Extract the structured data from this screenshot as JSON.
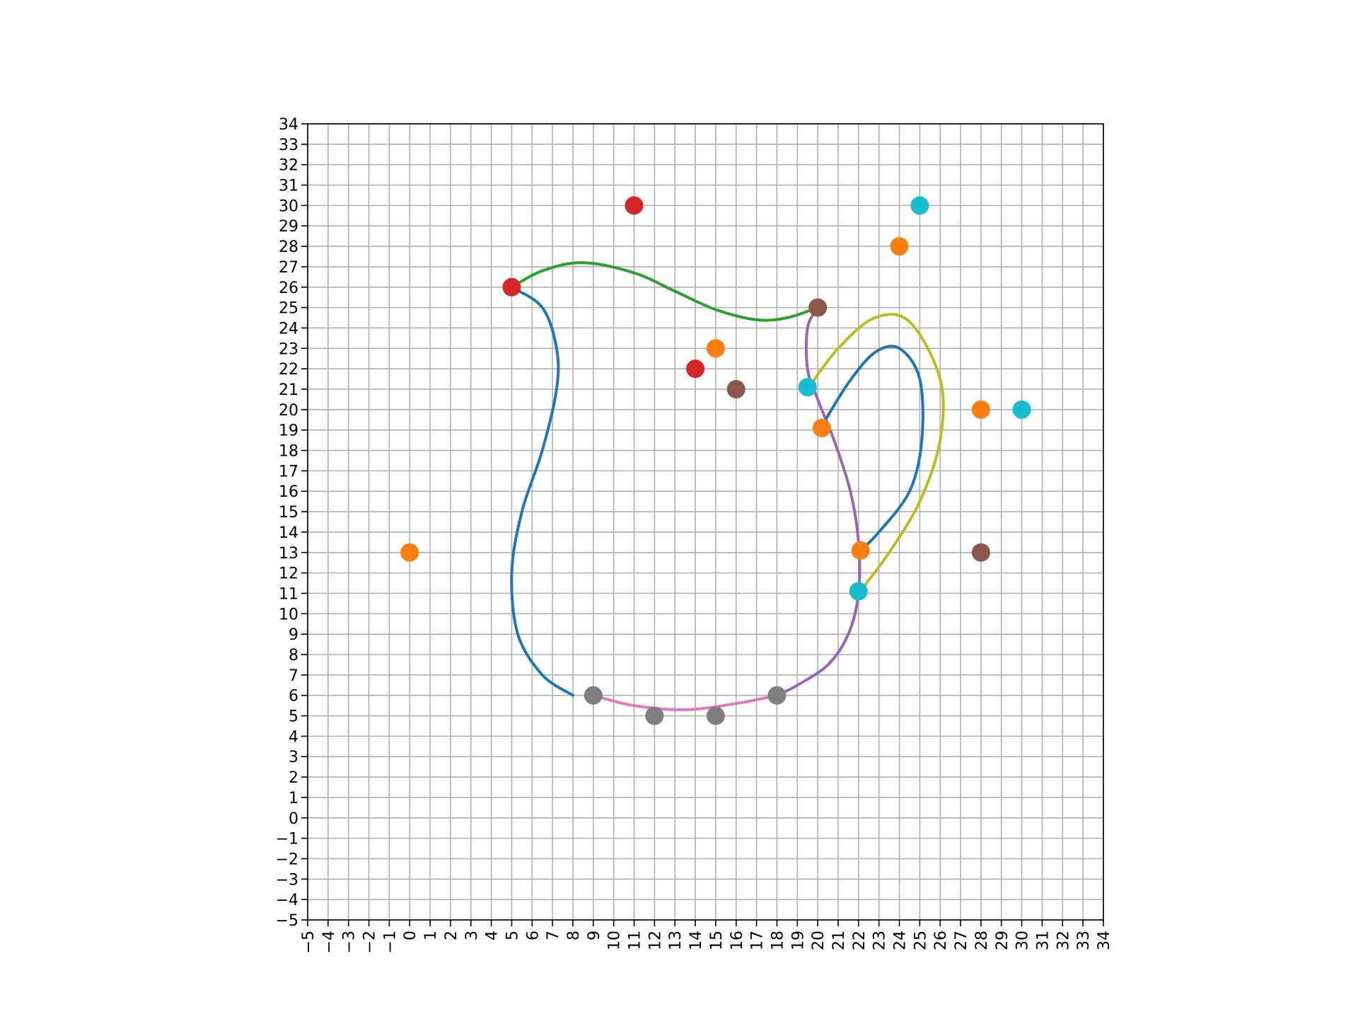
{
  "chart_data": {
    "type": "line",
    "title": "",
    "xlabel": "",
    "ylabel": "",
    "xlim": [
      -5,
      34
    ],
    "ylim": [
      -5,
      34
    ],
    "grid": true,
    "x_ticks": [
      "−5",
      "−4",
      "−3",
      "−2",
      "−1",
      "0",
      "1",
      "2",
      "3",
      "4",
      "5",
      "6",
      "7",
      "8",
      "9",
      "10",
      "11",
      "12",
      "13",
      "14",
      "15",
      "16",
      "17",
      "18",
      "19",
      "20",
      "21",
      "22",
      "23",
      "24",
      "25",
      "26",
      "27",
      "28",
      "29",
      "30",
      "31",
      "32",
      "33",
      "34"
    ],
    "y_ticks": [
      "−5",
      "−4",
      "−3",
      "−2",
      "−1",
      "0",
      "1",
      "2",
      "3",
      "4",
      "5",
      "6",
      "7",
      "8",
      "9",
      "10",
      "11",
      "12",
      "13",
      "14",
      "15",
      "16",
      "17",
      "18",
      "19",
      "20",
      "21",
      "22",
      "23",
      "24",
      "25",
      "26",
      "27",
      "28",
      "29",
      "30",
      "31",
      "32",
      "33",
      "34"
    ],
    "curves": [
      {
        "color": "#1f77b4",
        "points": [
          [
            5,
            26
          ],
          [
            6.5,
            25
          ],
          [
            7.2,
            23
          ],
          [
            7.2,
            21
          ],
          [
            6.5,
            18
          ],
          [
            5.5,
            15
          ],
          [
            5,
            12
          ],
          [
            5.3,
            9
          ],
          [
            6.5,
            7
          ],
          [
            8,
            6
          ]
        ]
      },
      {
        "color": "#2ca02c",
        "points": [
          [
            5,
            26
          ],
          [
            6.5,
            26.8
          ],
          [
            8.5,
            27.2
          ],
          [
            11,
            26.7
          ],
          [
            13,
            25.8
          ],
          [
            15,
            24.9
          ],
          [
            17,
            24.4
          ],
          [
            18.5,
            24.5
          ],
          [
            20,
            25
          ]
        ]
      },
      {
        "color": "#9467bd",
        "points": [
          [
            20,
            25
          ],
          [
            19.5,
            24
          ],
          [
            19.5,
            22
          ],
          [
            20,
            20.5
          ],
          [
            20.8,
            18.5
          ],
          [
            21.6,
            16
          ],
          [
            22,
            13.5
          ],
          [
            22,
            11
          ],
          [
            21.5,
            9
          ],
          [
            20.5,
            7.5
          ],
          [
            19,
            6.5
          ],
          [
            18,
            6
          ]
        ]
      },
      {
        "color": "#1f77b4",
        "points": [
          [
            20.2,
            19.2
          ],
          [
            21.5,
            21.3
          ],
          [
            22.8,
            22.8
          ],
          [
            24,
            23
          ],
          [
            25,
            21.5
          ],
          [
            25.1,
            18.5
          ],
          [
            24.5,
            16
          ],
          [
            23,
            14
          ],
          [
            22,
            13
          ]
        ]
      },
      {
        "color": "#bcbd22",
        "points": [
          [
            19.5,
            21
          ],
          [
            21,
            23
          ],
          [
            22.8,
            24.5
          ],
          [
            24.5,
            24.3
          ],
          [
            26,
            21.5
          ],
          [
            26,
            18.5
          ],
          [
            25,
            15.5
          ],
          [
            23.5,
            13
          ],
          [
            22,
            11
          ]
        ]
      },
      {
        "color": "#e377c2",
        "points": [
          [
            9,
            6
          ],
          [
            11,
            5.5
          ],
          [
            13.5,
            5.3
          ],
          [
            16,
            5.6
          ],
          [
            18,
            6
          ]
        ]
      }
    ],
    "points": [
      {
        "x": 5,
        "y": 26,
        "color": "#d62728"
      },
      {
        "x": 11,
        "y": 30,
        "color": "#d62728"
      },
      {
        "x": 14,
        "y": 22,
        "color": "#d62728"
      },
      {
        "x": 15,
        "y": 23,
        "color": "#ff7f0e"
      },
      {
        "x": 0,
        "y": 13,
        "color": "#ff7f0e"
      },
      {
        "x": 24,
        "y": 28,
        "color": "#ff7f0e"
      },
      {
        "x": 28,
        "y": 20,
        "color": "#ff7f0e"
      },
      {
        "x": 20.2,
        "y": 19.1,
        "color": "#ff7f0e"
      },
      {
        "x": 22.1,
        "y": 13.1,
        "color": "#ff7f0e"
      },
      {
        "x": 16,
        "y": 21,
        "color": "#8c564b"
      },
      {
        "x": 20,
        "y": 25,
        "color": "#8c564b"
      },
      {
        "x": 28,
        "y": 13,
        "color": "#8c564b"
      },
      {
        "x": 25,
        "y": 30,
        "color": "#17becf"
      },
      {
        "x": 30,
        "y": 20,
        "color": "#17becf"
      },
      {
        "x": 19.5,
        "y": 21.1,
        "color": "#17becf"
      },
      {
        "x": 22,
        "y": 11.1,
        "color": "#17becf"
      },
      {
        "x": 9,
        "y": 6,
        "color": "#7f7f7f"
      },
      {
        "x": 12,
        "y": 5,
        "color": "#7f7f7f"
      },
      {
        "x": 15,
        "y": 5,
        "color": "#7f7f7f"
      },
      {
        "x": 18,
        "y": 6,
        "color": "#7f7f7f"
      }
    ]
  }
}
